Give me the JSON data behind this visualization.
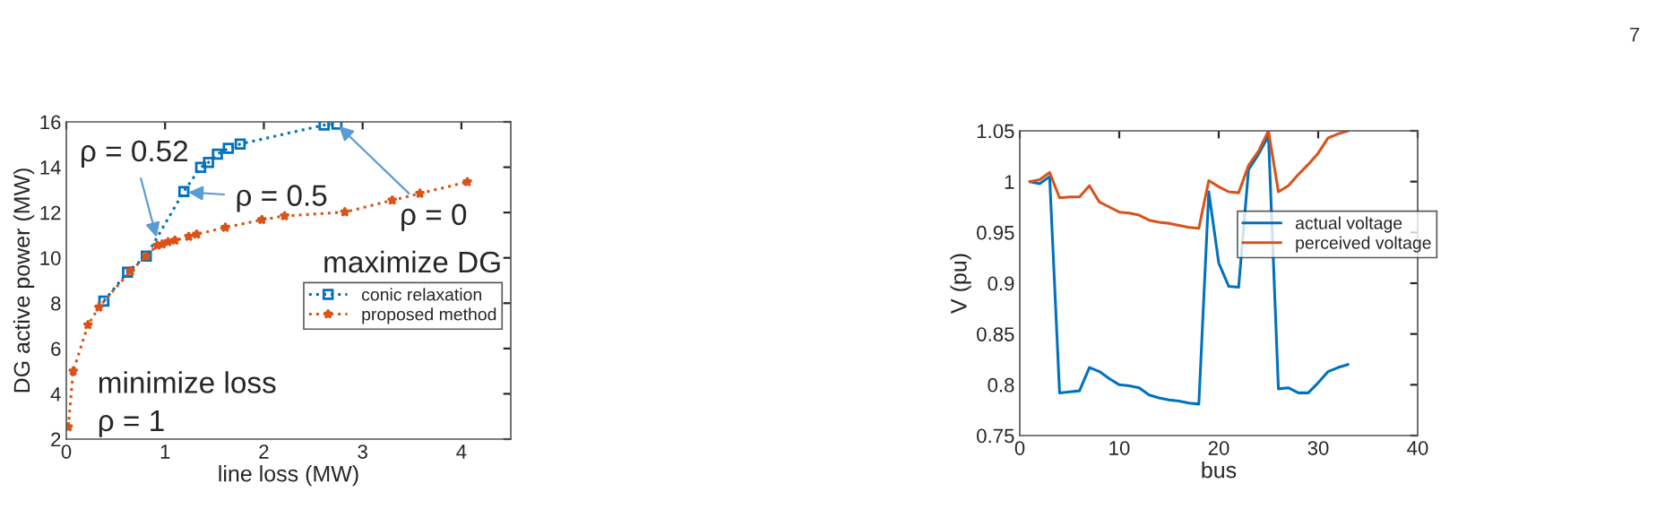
{
  "chart_data": [
    {
      "type": "line",
      "xlabel": "line loss (MW)",
      "ylabel": "DG active power (MW)",
      "xlim": [
        0,
        4.5
      ],
      "xticks": [
        0,
        1,
        2,
        3,
        4
      ],
      "ylim": [
        2,
        16
      ],
      "yticks": [
        2,
        4,
        6,
        8,
        10,
        12,
        14,
        16
      ],
      "legend": "right",
      "line_style": "dotted",
      "series": [
        {
          "name": "conic relaxation",
          "color": "#0072bd",
          "marker": "square",
          "x": [
            0.38,
            0.62,
            0.81,
            1.19,
            1.36,
            1.44,
            1.53,
            1.64,
            1.76,
            2.61,
            2.74
          ],
          "values": [
            8.09,
            9.37,
            10.08,
            12.93,
            13.99,
            14.21,
            14.58,
            14.83,
            15.02,
            15.86,
            15.9
          ]
        },
        {
          "name": "proposed method",
          "color": "#d95319",
          "marker": "star",
          "x": [
            0.02,
            0.07,
            0.22,
            0.33,
            0.65,
            0.81,
            0.92,
            0.97,
            1.03,
            1.1,
            1.24,
            1.32,
            1.61,
            1.98,
            2.21,
            2.82,
            3.3,
            3.58,
            4.06
          ],
          "values": [
            2.54,
            5.0,
            7.04,
            7.82,
            9.42,
            10.08,
            10.55,
            10.6,
            10.7,
            10.77,
            10.94,
            11.04,
            11.34,
            11.68,
            11.85,
            12.02,
            12.54,
            12.84,
            13.35
          ]
        }
      ],
      "annotations": [
        {
          "text": "ρ = 0.52",
          "x": 0.92,
          "y": 10.8
        },
        {
          "text": "ρ = 0.5",
          "x": 1.21,
          "y": 12.9
        },
        {
          "text": "ρ = 0",
          "x": 2.74,
          "y": 15.9
        },
        "maximize DG",
        "minimize loss",
        "ρ = 1"
      ]
    },
    {
      "type": "line",
      "xlabel": "bus",
      "ylabel": "V (pu)",
      "xlim": [
        0,
        40
      ],
      "xticks": [
        0,
        10,
        20,
        30,
        40
      ],
      "ylim": [
        0.75,
        1.05
      ],
      "yticks": [
        0.75,
        0.8,
        0.85,
        0.9,
        0.95,
        1,
        1.05
      ],
      "legend": "right",
      "series": [
        {
          "name": "actual voltage",
          "color": "#0072bd",
          "x": [
            1,
            2,
            3,
            4,
            5,
            6,
            7,
            8,
            9,
            10,
            11,
            12,
            13,
            14,
            15,
            16,
            17,
            18,
            19,
            20,
            21,
            22,
            23,
            24,
            25,
            26,
            27,
            28,
            29,
            30,
            31,
            32,
            33
          ],
          "values": [
            1.0,
            0.998,
            1.005,
            0.792,
            0.793,
            0.794,
            0.817,
            0.813,
            0.806,
            0.8,
            0.799,
            0.797,
            0.79,
            0.787,
            0.785,
            0.784,
            0.782,
            0.781,
            0.99,
            0.92,
            0.897,
            0.896,
            1.012,
            1.027,
            1.045,
            0.796,
            0.797,
            0.792,
            0.792,
            0.802,
            0.813,
            0.817,
            0.82
          ]
        },
        {
          "name": "perceived voltage",
          "color": "#d95319",
          "x": [
            1,
            2,
            3,
            4,
            5,
            6,
            7,
            8,
            9,
            10,
            11,
            12,
            13,
            14,
            15,
            16,
            17,
            18,
            19,
            20,
            21,
            22,
            23,
            24,
            25,
            26,
            27,
            28,
            29,
            30,
            31,
            32,
            33
          ],
          "values": [
            1.0,
            1.002,
            1.009,
            0.984,
            0.985,
            0.985,
            0.996,
            0.98,
            0.975,
            0.97,
            0.969,
            0.967,
            0.962,
            0.96,
            0.959,
            0.957,
            0.955,
            0.954,
            1.001,
            0.995,
            0.99,
            0.989,
            1.016,
            1.03,
            1.05,
            0.99,
            0.996,
            1.007,
            1.017,
            1.028,
            1.043,
            1.047,
            1.05
          ]
        }
      ],
      "annotations": [
        "7"
      ]
    }
  ]
}
